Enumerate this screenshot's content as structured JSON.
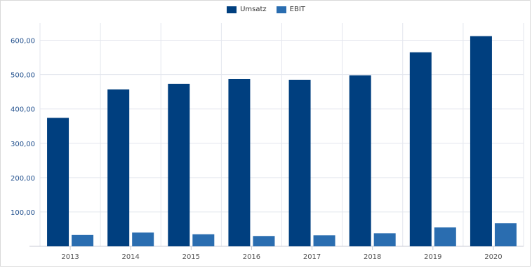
{
  "chart_data": {
    "type": "bar",
    "categories": [
      "2013",
      "2014",
      "2015",
      "2016",
      "2017",
      "2018",
      "2019",
      "2020"
    ],
    "series": [
      {
        "name": "Umsatz",
        "color": "#003f7f",
        "values": [
          374,
          457,
          473,
          487,
          485,
          498,
          565,
          612
        ]
      },
      {
        "name": "EBIT",
        "color": "#2a6db0",
        "values": [
          33,
          40,
          35,
          30,
          32,
          38,
          55,
          67
        ]
      }
    ],
    "y_ticks": [
      "100,00",
      "200,00",
      "300,00",
      "400,00",
      "500,00",
      "600,00"
    ],
    "y_tick_values": [
      100,
      200,
      300,
      400,
      500,
      600
    ],
    "ylim": [
      0,
      650
    ],
    "grid": true,
    "legend_position": "top-center",
    "title": "",
    "xlabel": "",
    "ylabel": ""
  }
}
